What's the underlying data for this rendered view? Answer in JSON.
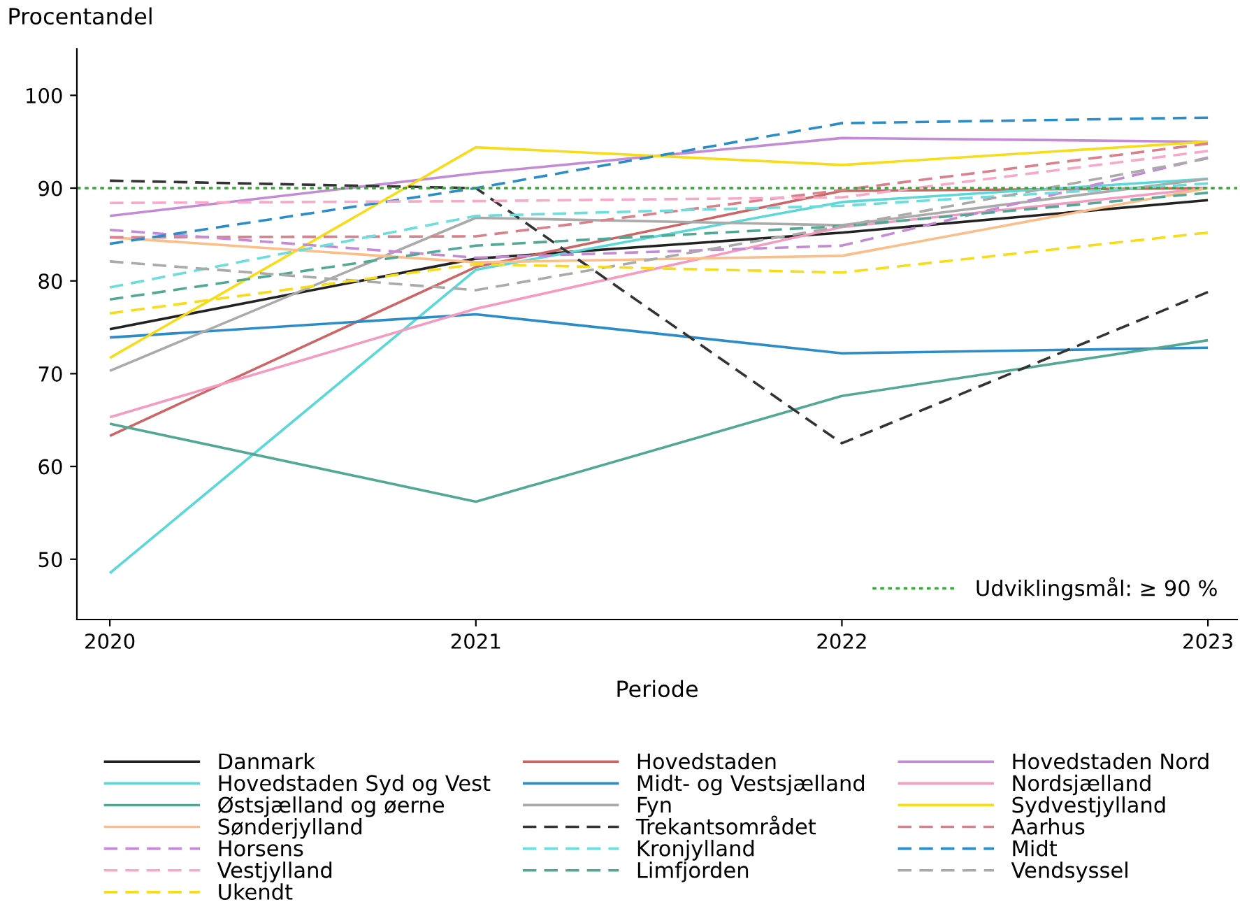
{
  "chart_data": {
    "type": "line",
    "ylabel": "Procentandel",
    "xlabel": "Periode",
    "x": [
      2020,
      2021,
      2022,
      2023
    ],
    "xlim": [
      2019.91,
      2023.08
    ],
    "xticks": [
      2020,
      2021,
      2022,
      2023
    ],
    "ylim": [
      43.5,
      105
    ],
    "yticks": [
      50,
      60,
      70,
      80,
      90,
      100
    ],
    "grid": false,
    "legend": "bottom",
    "marker": "none",
    "ref_lines": [
      {
        "axis": "y",
        "value": 90,
        "label": "Udviklingsmål: ≥ 90 %",
        "color": "#3aa33a",
        "line_style": "dotted"
      }
    ],
    "series": [
      {
        "name": "Danmark",
        "color": "#222222",
        "line_style": "solid",
        "values": [
          74.8,
          82.4,
          85.2,
          88.7
        ]
      },
      {
        "name": "Hovedstaden",
        "color": "#cc6666",
        "line_style": "solid",
        "values": [
          63.3,
          81.5,
          89.7,
          90.0
        ]
      },
      {
        "name": "Hovedstaden Nord",
        "color": "#c38bd6",
        "line_style": "solid",
        "values": [
          87.0,
          91.6,
          95.4,
          95.0
        ]
      },
      {
        "name": "Hovedstaden Syd og Vest",
        "color": "#5ad8d8",
        "line_style": "solid",
        "values": [
          48.5,
          81.2,
          88.5,
          91.0
        ]
      },
      {
        "name": "Midt- og Vestsjælland",
        "color": "#2b8cc8",
        "line_style": "solid",
        "values": [
          73.9,
          76.4,
          72.2,
          72.8
        ]
      },
      {
        "name": "Nordsjælland",
        "color": "#f59ac0",
        "line_style": "solid",
        "values": [
          65.3,
          77.0,
          85.8,
          90.0
        ]
      },
      {
        "name": "Østsjælland og øerne",
        "color": "#52a894",
        "line_style": "solid",
        "values": [
          64.6,
          56.2,
          67.6,
          73.6
        ]
      },
      {
        "name": "Fyn",
        "color": "#aaaaaa",
        "line_style": "solid",
        "values": [
          70.3,
          86.8,
          86.0,
          91.0
        ]
      },
      {
        "name": "Sydvestjylland",
        "color": "#f7dc1a",
        "line_style": "solid",
        "values": [
          71.7,
          94.4,
          92.5,
          95.0
        ]
      },
      {
        "name": "Sønderjylland",
        "color": "#fbbe8a",
        "line_style": "solid",
        "values": [
          84.7,
          82.0,
          82.7,
          90.0
        ]
      },
      {
        "name": "Trekantsområdet",
        "color": "#333333",
        "line_style": "dashed",
        "values": [
          90.8,
          90.0,
          62.5,
          78.8
        ]
      },
      {
        "name": "Aarhus",
        "color": "#d9808a",
        "line_style": "dashed",
        "values": [
          84.7,
          84.8,
          89.8,
          94.8
        ]
      },
      {
        "name": "Horsens",
        "color": "#c38bd6",
        "line_style": "dashed",
        "values": [
          85.5,
          82.5,
          83.8,
          93.3
        ]
      },
      {
        "name": "Kronjylland",
        "color": "#6ddcdc",
        "line_style": "dashed",
        "values": [
          79.3,
          87.0,
          88.1,
          90.5
        ]
      },
      {
        "name": "Midt",
        "color": "#2b8cc8",
        "line_style": "dashed",
        "values": [
          84.0,
          90.0,
          97.0,
          97.6
        ]
      },
      {
        "name": "Vestjylland",
        "color": "#f8a8c8",
        "line_style": "dashed",
        "values": [
          88.4,
          88.6,
          89.0,
          94.0
        ]
      },
      {
        "name": "Limfjorden",
        "color": "#52a894",
        "line_style": "dashed",
        "values": [
          78.0,
          83.8,
          85.9,
          89.5
        ]
      },
      {
        "name": "Vendsyssel",
        "color": "#aaaaaa",
        "line_style": "dashed",
        "values": [
          82.1,
          79.0,
          85.9,
          93.2
        ]
      },
      {
        "name": "Ukendt",
        "color": "#f7dc1a",
        "line_style": "dashed",
        "values": [
          76.5,
          81.8,
          80.9,
          85.2
        ]
      }
    ]
  }
}
